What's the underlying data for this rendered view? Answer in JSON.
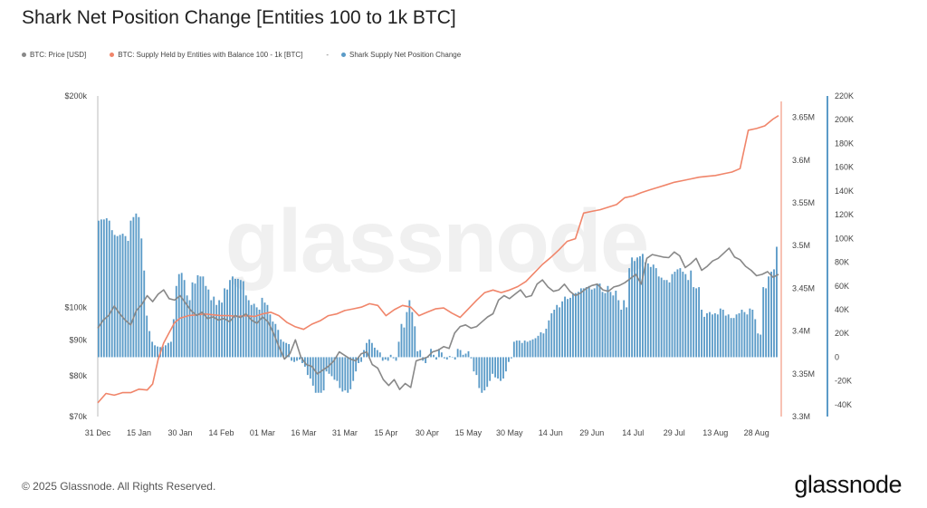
{
  "title": "Shark Net Position Change [Entities 100 to 1k BTC]",
  "legend": {
    "items": [
      {
        "label": "BTC: Price [USD]",
        "color": "#888888"
      },
      {
        "label": "BTC: Supply Held by Entities with Balance 100 - 1k [BTC]",
        "color": "#f0856a"
      }
    ],
    "dash": "-",
    "bar_label": "Shark Supply Net Position Change",
    "bar_color": "#5b9bc8"
  },
  "watermark": "glassnode",
  "footer": {
    "copyright": "© 2025 Glassnode. All Rights Reserved.",
    "logo": "glassnode"
  },
  "chart_data": {
    "type": "line+bar",
    "x_ticks": [
      "31 Dec",
      "15 Jan",
      "30 Jan",
      "14 Feb",
      "01 Mar",
      "16 Mar",
      "31 Mar",
      "15 Apr",
      "30 Apr",
      "15 May",
      "30 May",
      "14 Jun",
      "29 Jun",
      "14 Jul",
      "29 Jul",
      "13 Aug",
      "28 Aug"
    ],
    "left_axis": {
      "scale": "log",
      "ticks": [
        "$200k",
        "$100k",
        "$90k",
        "$80k",
        "$70k"
      ],
      "tick_values": [
        200000,
        100000,
        90000,
        80000,
        70000
      ],
      "range": [
        70000,
        200000
      ]
    },
    "mid_axis": {
      "ticks": [
        "3.65M",
        "3.6M",
        "3.55M",
        "3.5M",
        "3.45M",
        "3.4M",
        "3.35M",
        "3.3M"
      ],
      "tick_values": [
        3650000,
        3600000,
        3550000,
        3500000,
        3450000,
        3400000,
        3350000,
        3300000
      ],
      "range": [
        3300000,
        3675000
      ]
    },
    "right_axis": {
      "ticks": [
        "220K",
        "200K",
        "180K",
        "160K",
        "140K",
        "120K",
        "100K",
        "80K",
        "60K",
        "40K",
        "20K",
        "0",
        "-20K",
        "-40K"
      ],
      "tick_values": [
        220000,
        200000,
        180000,
        160000,
        140000,
        120000,
        100000,
        80000,
        60000,
        40000,
        20000,
        0,
        -20000,
        -40000
      ],
      "range": [
        -50000,
        220000
      ]
    },
    "price": {
      "name": "BTC: Price [USD]",
      "x": [
        0,
        2,
        4,
        6,
        8,
        10,
        12,
        14,
        16,
        18,
        20,
        22,
        24,
        26,
        28,
        30,
        32,
        34,
        36,
        38,
        40,
        42,
        44,
        46,
        48,
        50,
        52,
        54,
        56,
        58,
        60,
        62,
        64,
        66,
        68,
        70,
        72,
        74,
        76,
        78,
        80,
        82,
        84,
        86,
        88,
        90,
        92,
        94,
        96,
        98,
        100,
        102,
        104,
        106,
        108,
        110,
        112,
        114,
        116,
        118,
        120,
        122,
        124,
        126,
        128,
        130,
        132,
        134,
        136,
        138,
        140,
        142,
        144,
        146,
        148,
        150,
        152,
        154,
        156,
        158,
        160,
        162,
        164,
        166,
        168,
        170,
        172,
        174,
        176,
        178,
        180,
        182,
        184,
        186,
        188,
        190,
        192,
        194,
        196,
        198,
        200,
        202,
        204,
        206,
        208,
        210,
        212,
        214,
        216,
        218,
        220,
        222,
        224,
        226,
        228,
        230,
        232,
        234,
        236,
        238,
        240,
        242,
        244,
        246,
        248
      ],
      "values": [
        93500,
        96000,
        97500,
        100500,
        98000,
        96000,
        94500,
        99000,
        101000,
        104000,
        102000,
        104500,
        106000,
        103000,
        102500,
        104000,
        101500,
        99000,
        97500,
        98500,
        96500,
        97000,
        96000,
        96500,
        95500,
        97500,
        96800,
        98000,
        96000,
        95000,
        97000,
        95500,
        92000,
        88000,
        84500,
        86000,
        90000,
        85000,
        83000,
        82500,
        80500,
        81500,
        82500,
        84000,
        86500,
        85500,
        84500,
        84000,
        86000,
        86500,
        83000,
        82000,
        79000,
        77500,
        79000,
        76500,
        78000,
        77000,
        84000,
        84500,
        85000,
        86500,
        87000,
        88000,
        87500,
        92000,
        94000,
        94500,
        93500,
        94000,
        95500,
        97000,
        98000,
        102500,
        104000,
        103000,
        104500,
        106000,
        103500,
        104000,
        108000,
        109500,
        107000,
        105500,
        106000,
        108000,
        105500,
        104000,
        105000,
        106500,
        107500,
        108000,
        106000,
        105500,
        107000,
        107500,
        108500,
        110000,
        111500,
        108000,
        117500,
        119000,
        118500,
        118000,
        117800,
        120000,
        118500,
        114000,
        115500,
        117500,
        113000,
        114500,
        116500,
        117500,
        119500,
        121500,
        118000,
        117000,
        114500,
        113000,
        111000,
        111500,
        112500,
        110500,
        111500
      ]
    },
    "supply": {
      "name": "BTC: Supply Held by Entities with Balance 100 - 1k [BTC]",
      "x": [
        0,
        3,
        6,
        9,
        12,
        15,
        18,
        20,
        22,
        24,
        26,
        28,
        30,
        33,
        36,
        39,
        42,
        45,
        48,
        51,
        54,
        57,
        60,
        63,
        66,
        69,
        72,
        75,
        78,
        81,
        84,
        87,
        90,
        93,
        96,
        99,
        102,
        105,
        108,
        111,
        114,
        117,
        120,
        123,
        126,
        129,
        132,
        135,
        138,
        141,
        144,
        147,
        150,
        153,
        156,
        159,
        162,
        165,
        168,
        171,
        174,
        177,
        180,
        183,
        186,
        189,
        192,
        195,
        198,
        201,
        204,
        207,
        210,
        213,
        216,
        219,
        222,
        225,
        228,
        231,
        234,
        237,
        240,
        243,
        246,
        248
      ],
      "values": [
        3316000,
        3327000,
        3325000,
        3328000,
        3328000,
        3332000,
        3331000,
        3338000,
        3367000,
        3386000,
        3398000,
        3410000,
        3415000,
        3418000,
        3419000,
        3420000,
        3419000,
        3418000,
        3418000,
        3417000,
        3418000,
        3417000,
        3420000,
        3422000,
        3418000,
        3410000,
        3405000,
        3402000,
        3408000,
        3412000,
        3418000,
        3420000,
        3424000,
        3426000,
        3428000,
        3432000,
        3430000,
        3418000,
        3425000,
        3430000,
        3428000,
        3418000,
        3422000,
        3426000,
        3427000,
        3421000,
        3416000,
        3426000,
        3436000,
        3445000,
        3448000,
        3445000,
        3448000,
        3452000,
        3458000,
        3468000,
        3478000,
        3486000,
        3495000,
        3505000,
        3508000,
        3538000,
        3540000,
        3542000,
        3545000,
        3548000,
        3556000,
        3558000,
        3562000,
        3565000,
        3568000,
        3571000,
        3574000,
        3576000,
        3578000,
        3580000,
        3581000,
        3582000,
        3584000,
        3586000,
        3590000,
        3635000,
        3637000,
        3640000,
        3648000,
        3652000
      ]
    },
    "net_change": {
      "name": "Shark Supply Net Position Change",
      "start_value": -20000,
      "step": 1,
      "values": [
        115000,
        116000,
        116000,
        117000,
        115000,
        107000,
        103000,
        102000,
        103000,
        104000,
        102000,
        98000,
        115000,
        118000,
        121000,
        118000,
        100000,
        73000,
        35000,
        22000,
        13000,
        10000,
        9000,
        8500,
        9000,
        10000,
        12000,
        13000,
        32000,
        60000,
        70000,
        71000,
        65000,
        52000,
        48000,
        63000,
        62000,
        69000,
        68000,
        68000,
        60000,
        57000,
        48000,
        51000,
        44000,
        48000,
        46000,
        58000,
        57000,
        65000,
        68000,
        66000,
        66000,
        65000,
        64000,
        52000,
        48000,
        44000,
        45000,
        42000,
        40000,
        50000,
        46000,
        44000,
        36000,
        30000,
        28000,
        23000,
        15000,
        13000,
        12000,
        11000,
        -3000,
        -4000,
        -3000,
        -2000,
        -5000,
        -8000,
        -15000,
        -18000,
        -24000,
        -30000,
        -30000,
        -30000,
        -28000,
        -12000,
        -14000,
        -16000,
        -19000,
        -20000,
        -26000,
        -29000,
        -28000,
        -30000,
        -27000,
        -20000,
        -12000,
        -5000,
        -4000,
        6000,
        12000,
        15000,
        12000,
        8000,
        6000,
        4000,
        -3000,
        -2000,
        -3000,
        2000,
        -1000,
        -3000,
        13000,
        28000,
        25000,
        38000,
        48000,
        38000,
        26000,
        5000,
        6000,
        -3000,
        -5000,
        0,
        7000,
        2000,
        -2000,
        7000,
        4000,
        -1000,
        -2000,
        1000,
        0,
        -2000,
        7000,
        6000,
        2000,
        3000,
        5000,
        -1000,
        -12000,
        -15000,
        -26000,
        -30000,
        -28000,
        -25000,
        -20000,
        -14000,
        -17000,
        -18000,
        -20000,
        -18000,
        -12000,
        -4000,
        -1000,
        13000,
        14000,
        14000,
        12000,
        14000,
        13000,
        14000,
        15000,
        16000,
        18000,
        21000,
        20000,
        24000,
        31000,
        37000,
        40000,
        44000,
        42000,
        47000,
        51000,
        49000,
        50000,
        53000,
        54000,
        55000,
        58000,
        58000,
        59000,
        60000,
        57000,
        58000,
        62000,
        62000,
        55000,
        54000,
        60000,
        55000,
        52000,
        56000,
        48000,
        40000,
        48000,
        42000,
        75000,
        84000,
        81000,
        84000,
        85000,
        87000,
        80000,
        79000,
        76000,
        78000,
        75000,
        68000,
        67000,
        65000,
        65000,
        63000,
        70000,
        72000,
        74000,
        75000,
        72000,
        70000,
        65000,
        73000,
        59000,
        58000,
        59000,
        40000,
        34000,
        37000,
        38000,
        36000,
        37000,
        36000,
        41000,
        40000,
        35000,
        36000,
        33000,
        33000,
        36000,
        37000,
        40000,
        38000,
        36000,
        41000,
        40000,
        32000,
        20000,
        19000,
        59000,
        58000,
        68000,
        72000,
        74000,
        93000
      ]
    }
  }
}
